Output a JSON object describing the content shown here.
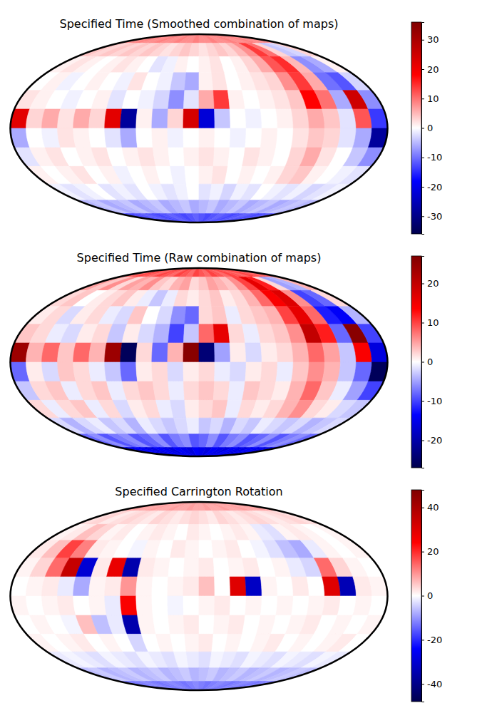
{
  "chart_data": [
    {
      "type": "heatmap",
      "title": "Specified Time (Smoothed combination of maps)",
      "colorbar": {
        "range": [
          -36,
          36
        ],
        "ticks": [
          -30,
          -20,
          -10,
          0,
          10,
          20,
          30
        ]
      },
      "cells": [
        [
          8,
          8,
          9,
          8,
          8,
          9,
          8,
          8,
          9,
          8,
          8,
          9,
          8,
          8,
          9,
          8,
          8,
          9,
          8,
          8,
          9,
          8,
          8,
          8
        ],
        [
          4,
          3,
          4,
          3,
          4,
          3,
          4,
          3,
          2,
          3,
          4,
          3,
          2,
          3,
          4,
          3,
          5,
          8,
          14,
          10,
          3,
          -4,
          -3,
          3
        ],
        [
          1,
          2,
          1,
          0,
          1,
          2,
          1,
          0,
          -2,
          -1,
          1,
          0,
          1,
          2,
          0,
          1,
          3,
          6,
          12,
          15,
          5,
          -8,
          -6,
          1
        ],
        [
          0,
          1,
          -1,
          0,
          1,
          0,
          -1,
          2,
          0,
          -1,
          -4,
          -6,
          1,
          2,
          0,
          1,
          2,
          3,
          8,
          14,
          6,
          -10,
          -12,
          -3
        ],
        [
          2,
          1,
          0,
          -1,
          0,
          1,
          -2,
          0,
          -1,
          -3,
          -8,
          -2,
          6,
          14,
          1,
          0,
          1,
          2,
          4,
          18,
          10,
          -6,
          25,
          -8
        ],
        [
          22,
          3,
          6,
          2,
          6,
          3,
          22,
          -28,
          1,
          -6,
          3,
          24,
          -22,
          -4,
          0,
          -1,
          0,
          1,
          3,
          6,
          4,
          -2,
          12,
          -14
        ],
        [
          -6,
          0,
          -1,
          2,
          1,
          0,
          -2,
          -6,
          0,
          1,
          -1,
          0,
          1,
          0,
          -1,
          0,
          1,
          0,
          2,
          4,
          3,
          -2,
          -6,
          -28
        ],
        [
          -2,
          1,
          2,
          0,
          1,
          2,
          0,
          1,
          2,
          1,
          0,
          1,
          2,
          1,
          0,
          2,
          1,
          0,
          3,
          6,
          2,
          0,
          -4,
          -8
        ],
        [
          1,
          0,
          1,
          2,
          0,
          1,
          -1,
          0,
          1,
          0,
          -1,
          0,
          1,
          2,
          0,
          1,
          0,
          1,
          3,
          4,
          1,
          0,
          -1,
          -2
        ],
        [
          -1,
          -2,
          -1,
          0,
          -2,
          -1,
          -2,
          0,
          -1,
          -2,
          -1,
          0,
          -2,
          -1,
          -3,
          -1,
          -2,
          0,
          -1,
          -2,
          -1,
          -3,
          -2,
          -1
        ],
        [
          -5,
          -4,
          -6,
          -5,
          -4,
          -6,
          -5,
          -4,
          -6,
          -5,
          -4,
          -6,
          -5,
          -4,
          -6,
          -5,
          -4,
          -6,
          -5,
          -4,
          -6,
          -5,
          -4,
          -5
        ],
        [
          -12,
          -13,
          -12,
          -11,
          -12,
          -13,
          -12,
          -11,
          -12,
          -13,
          -12,
          -11,
          -12,
          -13,
          -12,
          -11,
          -12,
          -13,
          -12,
          -11,
          -12,
          -13,
          -12,
          -12
        ]
      ]
    },
    {
      "type": "heatmap",
      "title": "Specified Time (Raw combination of maps)",
      "colorbar": {
        "range": [
          -27,
          27
        ],
        "ticks": [
          -20,
          -10,
          0,
          10,
          20
        ]
      },
      "cells": [
        [
          9,
          8,
          10,
          9,
          8,
          10,
          9,
          8,
          10,
          9,
          8,
          10,
          9,
          8,
          10,
          9,
          8,
          10,
          9,
          8,
          10,
          9,
          8,
          9
        ],
        [
          5,
          3,
          6,
          2,
          5,
          4,
          6,
          3,
          2,
          4,
          5,
          2,
          3,
          5,
          4,
          3,
          6,
          10,
          16,
          12,
          2,
          -5,
          -4,
          4
        ],
        [
          2,
          3,
          0,
          1,
          2,
          3,
          1,
          -1,
          -3,
          -1,
          2,
          1,
          2,
          3,
          1,
          2,
          4,
          8,
          14,
          17,
          6,
          -10,
          -8,
          2
        ],
        [
          1,
          2,
          -2,
          1,
          2,
          -1,
          -2,
          3,
          0,
          -2,
          -6,
          -8,
          2,
          3,
          -1,
          2,
          3,
          4,
          10,
          16,
          8,
          -12,
          -14,
          -4
        ],
        [
          3,
          2,
          -1,
          -2,
          1,
          2,
          -3,
          1,
          -2,
          -4,
          -10,
          -3,
          8,
          16,
          2,
          -1,
          2,
          3,
          6,
          20,
          12,
          -8,
          26,
          -10
        ],
        [
          24,
          4,
          8,
          3,
          8,
          4,
          24,
          -26,
          2,
          -8,
          4,
          26,
          -24,
          -5,
          1,
          -2,
          1,
          2,
          4,
          8,
          5,
          -3,
          14,
          -16
        ],
        [
          -8,
          1,
          -2,
          3,
          2,
          -1,
          -3,
          -8,
          1,
          2,
          -2,
          1,
          2,
          -1,
          -2,
          1,
          2,
          -1,
          3,
          6,
          4,
          -3,
          -8,
          -26
        ],
        [
          -3,
          2,
          3,
          -1,
          2,
          3,
          -1,
          2,
          3,
          2,
          -1,
          2,
          3,
          2,
          -1,
          3,
          2,
          1,
          4,
          8,
          3,
          -1,
          -5,
          -10
        ],
        [
          2,
          -1,
          2,
          3,
          -1,
          2,
          -2,
          1,
          2,
          -1,
          -2,
          1,
          2,
          3,
          -1,
          2,
          1,
          2,
          4,
          6,
          2,
          1,
          -2,
          -3
        ],
        [
          -2,
          -4,
          -2,
          -1,
          -3,
          -2,
          -4,
          -1,
          -2,
          -3,
          -2,
          -1,
          -3,
          -2,
          -4,
          -2,
          -3,
          -1,
          -2,
          -3,
          -2,
          -4,
          -3,
          -2
        ],
        [
          -8,
          -6,
          -9,
          -7,
          -6,
          -9,
          -8,
          -6,
          -9,
          -7,
          -6,
          -9,
          -8,
          -6,
          -9,
          -7,
          -6,
          -9,
          -8,
          -6,
          -9,
          -7,
          -6,
          -8
        ],
        [
          -15,
          -16,
          -14,
          -15,
          -16,
          -14,
          -15,
          -16,
          -14,
          -15,
          -16,
          -14,
          -15,
          -16,
          -14,
          -15,
          -16,
          -14,
          -15,
          -16,
          -14,
          -15,
          -16,
          -15
        ]
      ]
    },
    {
      "type": "heatmap",
      "title": "Specified Carrington Rotation",
      "colorbar": {
        "range": [
          -48,
          48
        ],
        "ticks": [
          -40,
          -20,
          0,
          20,
          40
        ]
      },
      "cells": [
        [
          8,
          9,
          8,
          8,
          9,
          8,
          8,
          9,
          8,
          8,
          9,
          8,
          8,
          9,
          8,
          8,
          9,
          8,
          8,
          9,
          8,
          8,
          9,
          8
        ],
        [
          3,
          4,
          2,
          3,
          4,
          3,
          2,
          4,
          3,
          2,
          3,
          4,
          3,
          2,
          4,
          3,
          2,
          3,
          4,
          3,
          2,
          3,
          4,
          3
        ],
        [
          1,
          2,
          6,
          4,
          1,
          2,
          0,
          1,
          2,
          1,
          0,
          2,
          1,
          0,
          1,
          2,
          1,
          -2,
          -3,
          1,
          2,
          1,
          0,
          1
        ],
        [
          2,
          6,
          18,
          12,
          2,
          1,
          0,
          -1,
          1,
          0,
          2,
          1,
          0,
          1,
          2,
          0,
          -1,
          -3,
          -6,
          -8,
          -2,
          1,
          0,
          1
        ],
        [
          1,
          4,
          14,
          35,
          -30,
          2,
          28,
          -35,
          2,
          1,
          0,
          1,
          2,
          0,
          1,
          2,
          0,
          1,
          -2,
          -4,
          14,
          4,
          1,
          0
        ],
        [
          0,
          1,
          2,
          -2,
          -8,
          1,
          2,
          10,
          1,
          0,
          1,
          2,
          6,
          0,
          30,
          -32,
          1,
          0,
          2,
          0,
          30,
          -34,
          2,
          1
        ],
        [
          1,
          0,
          1,
          2,
          0,
          1,
          -2,
          25,
          1,
          0,
          -1,
          0,
          1,
          2,
          0,
          1,
          0,
          1,
          0,
          1,
          2,
          0,
          1,
          0
        ],
        [
          0,
          1,
          0,
          -1,
          6,
          -6,
          -2,
          -35,
          1,
          0,
          1,
          2,
          0,
          1,
          2,
          0,
          1,
          0,
          1,
          2,
          0,
          1,
          0,
          1
        ],
        [
          1,
          0,
          1,
          2,
          0,
          1,
          0,
          -4,
          0,
          1,
          0,
          1,
          2,
          0,
          1,
          0,
          1,
          2,
          0,
          1,
          0,
          1,
          2,
          0
        ],
        [
          -2,
          -1,
          -2,
          -3,
          -1,
          -2,
          -3,
          -1,
          -2,
          -3,
          -1,
          -2,
          -3,
          -1,
          -2,
          -3,
          -1,
          -2,
          -3,
          -1,
          -2,
          -3,
          -1,
          -2
        ],
        [
          -6,
          -5,
          -7,
          -6,
          -5,
          -7,
          -6,
          -5,
          -7,
          -6,
          -5,
          -7,
          -6,
          -5,
          -7,
          -6,
          -5,
          -7,
          -6,
          -5,
          -7,
          -6,
          -5,
          -6
        ],
        [
          -12,
          -13,
          -12,
          -11,
          -12,
          -13,
          -12,
          -11,
          -12,
          -13,
          -12,
          -11,
          -12,
          -13,
          -12,
          -11,
          -12,
          -13,
          -12,
          -11,
          -12,
          -13,
          -12,
          -12
        ]
      ]
    }
  ]
}
